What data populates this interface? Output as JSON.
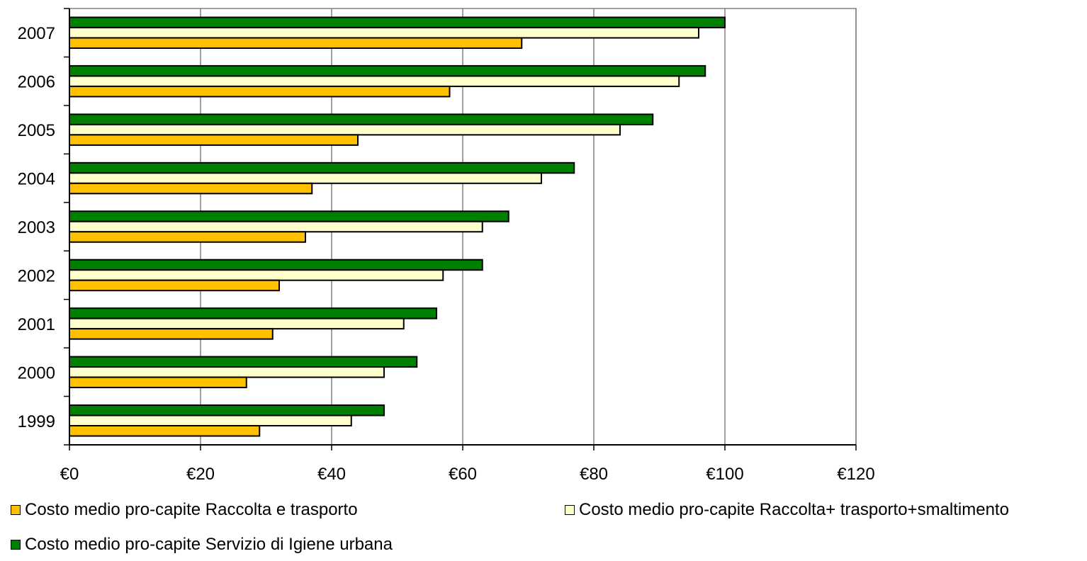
{
  "chart_data": {
    "type": "bar",
    "orientation": "horizontal",
    "categories": [
      "1999",
      "2000",
      "2001",
      "2002",
      "2003",
      "2004",
      "2005",
      "2006",
      "2007"
    ],
    "series": [
      {
        "name": "Costo medio pro-capite Raccolta e trasporto",
        "color": "#FFC000",
        "values": [
          29,
          27,
          31,
          32,
          36,
          37,
          44,
          58,
          69
        ]
      },
      {
        "name": "Costo medio pro-capite Raccolta+ trasporto+smaltimento",
        "color": "#FFFFCC",
        "values": [
          43,
          48,
          51,
          57,
          63,
          72,
          84,
          93,
          96
        ]
      },
      {
        "name": "Costo medio pro-capite Servizio di Igiene urbana",
        "color": "#008000",
        "values": [
          48,
          53,
          56,
          63,
          67,
          77,
          89,
          97,
          100
        ]
      }
    ],
    "xticks": [
      "€0",
      "€20",
      "€40",
      "€60",
      "€80",
      "€100",
      "€120"
    ],
    "xlim": [
      0,
      120
    ],
    "grid": true,
    "legend_position": "bottom"
  }
}
